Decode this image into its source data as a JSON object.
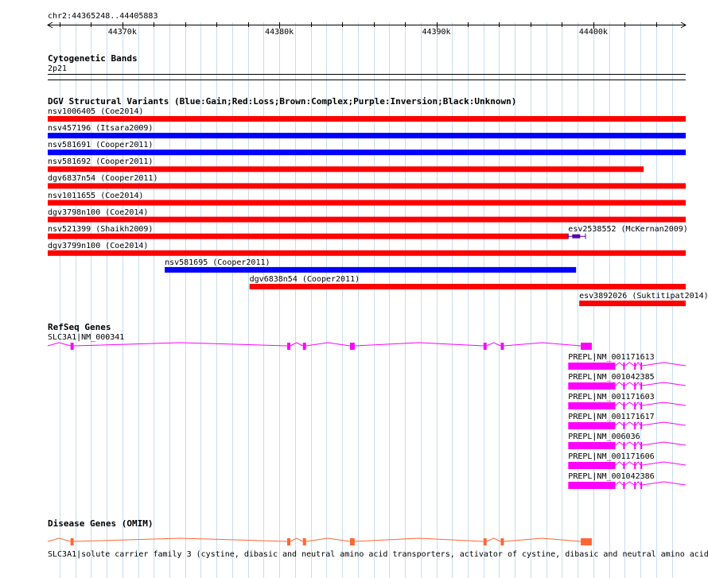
{
  "ruler": {
    "range_label": "chr2:44365248..44405883",
    "start": 44365248,
    "end": 44405883,
    "ticks": [
      {
        "pos": 44370000,
        "label": "44370k"
      },
      {
        "pos": 44380000,
        "label": "44380k"
      },
      {
        "pos": 44390000,
        "label": "44390k"
      },
      {
        "pos": 44400000,
        "label": "44400k"
      }
    ]
  },
  "cytoband": {
    "title": "Cytogenetic Bands",
    "band": "2p21"
  },
  "dgv": {
    "title": "DGV Structural Variants (Blue:Gain;Red:Loss;Brown:Complex;Purple:Inversion;Black:Unknown)",
    "colors": {
      "gain": "#0000ff",
      "loss": "#ff0000",
      "inversion": "#5500aa"
    },
    "variants": [
      {
        "label": "nsv1006405 (Coe2014)",
        "type": "loss",
        "start": 44365248,
        "end": 44405883
      },
      {
        "label": "nsv457196 (Itsara2009)",
        "type": "gain",
        "start": 44365248,
        "end": 44405883
      },
      {
        "label": "nsv581691 (Cooper2011)",
        "type": "gain",
        "start": 44365248,
        "end": 44405883
      },
      {
        "label": "nsv581692 (Cooper2011)",
        "type": "loss",
        "start": 44365248,
        "end": 44403200
      },
      {
        "label": "dgv6837n54 (Cooper2011)",
        "type": "loss",
        "start": 44365248,
        "end": 44405883
      },
      {
        "label": "nsv1011655 (Coe2014)",
        "type": "loss",
        "start": 44365248,
        "end": 44405883
      },
      {
        "label": "dgv3798n100 (Coe2014)",
        "type": "loss",
        "start": 44365248,
        "end": 44405883
      },
      {
        "label": "nsv521399 (Shaikh2009)",
        "type": "loss",
        "start": 44365248,
        "end": 44398400
      },
      {
        "label": "esv2538552 (McKernan2009)",
        "type": "inversion",
        "start": 44398400,
        "end": 44399500
      },
      {
        "label": "dgv3799n100 (Coe2014)",
        "type": "loss",
        "start": 44365248,
        "end": 44405883
      },
      {
        "label": "nsv581695 (Cooper2011)",
        "type": "gain",
        "start": 44372700,
        "end": 44398900
      },
      {
        "label": "dgv6838n54 (Cooper2011)",
        "type": "loss",
        "start": 44378100,
        "end": 44405883
      },
      {
        "label": "esv3892026 (Suktitipat2014)",
        "type": "loss",
        "start": 44399100,
        "end": 44405883
      }
    ]
  },
  "refseq": {
    "title": "RefSeq Genes",
    "color": "#ff00ff",
    "genes": [
      {
        "label": "SLC3A1|NM_000341",
        "exons": [
          [
            44366700,
            44366900
          ],
          [
            44380500,
            44380700
          ],
          [
            44381500,
            44381700
          ],
          [
            44384500,
            44384800
          ],
          [
            44393000,
            44393200
          ],
          [
            44394100,
            44394300
          ],
          [
            44399200,
            44399900
          ]
        ]
      },
      {
        "label": "PREPL|NM_001171613",
        "exons": [
          [
            44398400,
            44401400
          ],
          [
            44401900,
            44402000
          ],
          [
            44402600,
            44402700
          ],
          [
            44403000,
            44403100
          ]
        ]
      },
      {
        "label": "PREPL|NM_001042385",
        "exons": [
          [
            44398400,
            44401400
          ],
          [
            44401900,
            44402000
          ],
          [
            44402600,
            44402700
          ],
          [
            44403000,
            44403100
          ]
        ]
      },
      {
        "label": "PREPL|NM_001171603",
        "exons": [
          [
            44398400,
            44401400
          ],
          [
            44401900,
            44402000
          ],
          [
            44402600,
            44402700
          ],
          [
            44403000,
            44403100
          ]
        ]
      },
      {
        "label": "PREPL|NM_001171617",
        "exons": [
          [
            44398400,
            44401400
          ],
          [
            44401900,
            44402000
          ],
          [
            44402600,
            44402700
          ],
          [
            44403000,
            44403100
          ]
        ]
      },
      {
        "label": "PREPL|NM_006036",
        "exons": [
          [
            44398400,
            44401400
          ],
          [
            44401900,
            44402000
          ],
          [
            44402600,
            44402700
          ],
          [
            44403000,
            44403100
          ]
        ]
      },
      {
        "label": "PREPL|NM_001171606",
        "exons": [
          [
            44398400,
            44401400
          ],
          [
            44401900,
            44402000
          ],
          [
            44402600,
            44402700
          ],
          [
            44403000,
            44403100
          ]
        ]
      },
      {
        "label": "PREPL|NM_001042386",
        "exons": [
          [
            44398400,
            44401400
          ],
          [
            44401900,
            44402000
          ],
          [
            44402600,
            44402700
          ],
          [
            44403000,
            44403100
          ]
        ]
      }
    ]
  },
  "omim": {
    "title": "Disease Genes (OMIM)",
    "color": "#ff6633",
    "label": "SLC3A1|solute carrier family 3 (cystine, dibasic and neutral amino acid transporters, activator of cystine, dibasic and neutral amino acid",
    "exons": [
      [
        44366700,
        44366900
      ],
      [
        44380500,
        44380700
      ],
      [
        44381500,
        44381700
      ],
      [
        44384500,
        44384800
      ],
      [
        44393000,
        44393200
      ],
      [
        44394100,
        44394300
      ],
      [
        44399200,
        44399900
      ]
    ]
  }
}
